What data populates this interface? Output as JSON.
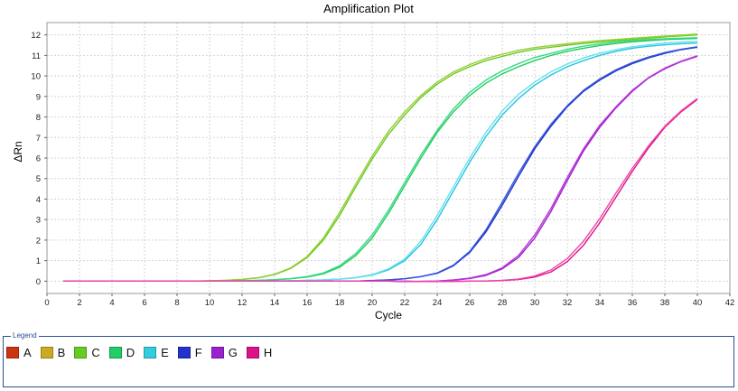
{
  "chart_data": {
    "type": "line",
    "title": "Amplification Plot",
    "xlabel": "Cycle",
    "ylabel": "ΔRn",
    "xlim": [
      0,
      42
    ],
    "ylim": [
      -0.6,
      12.6
    ],
    "xticks": [
      0,
      2,
      4,
      6,
      8,
      10,
      12,
      14,
      16,
      18,
      20,
      22,
      24,
      26,
      28,
      30,
      32,
      34,
      36,
      38,
      40,
      42
    ],
    "yticks": [
      0,
      1,
      2,
      3,
      4,
      5,
      6,
      7,
      8,
      9,
      10,
      11,
      12
    ],
    "grid": true,
    "x": [
      1,
      2,
      3,
      4,
      5,
      6,
      7,
      8,
      9,
      10,
      11,
      12,
      13,
      14,
      15,
      16,
      17,
      18,
      19,
      20,
      21,
      22,
      23,
      24,
      25,
      26,
      27,
      28,
      29,
      30,
      31,
      32,
      33,
      34,
      35,
      36,
      37,
      38,
      39,
      40
    ],
    "series": [
      {
        "color": "#66cc22",
        "values": [
          0,
          0,
          0,
          0,
          0,
          0,
          0,
          0,
          0,
          0.02,
          0.04,
          0.08,
          0.16,
          0.32,
          0.62,
          1.15,
          2.0,
          3.2,
          4.6,
          5.95,
          7.15,
          8.1,
          8.95,
          9.6,
          10.1,
          10.45,
          10.75,
          10.95,
          11.15,
          11.3,
          11.4,
          11.5,
          11.58,
          11.65,
          11.72,
          11.78,
          11.84,
          11.9,
          11.95,
          12.0
        ]
      },
      {
        "color": "#99cc33",
        "values": [
          0,
          0,
          0,
          0,
          0,
          0,
          0,
          0,
          0,
          0.02,
          0.04,
          0.09,
          0.17,
          0.34,
          0.65,
          1.2,
          2.1,
          3.35,
          4.75,
          6.1,
          7.3,
          8.25,
          9.05,
          9.7,
          10.2,
          10.55,
          10.85,
          11.05,
          11.25,
          11.38,
          11.48,
          11.57,
          11.65,
          11.72,
          11.78,
          11.84,
          11.89,
          11.94,
          11.99,
          12.04
        ]
      },
      {
        "color": "#22cc55",
        "values": [
          0,
          0,
          0,
          0,
          0,
          0,
          0,
          0,
          0,
          0,
          0,
          0.02,
          0.04,
          0.07,
          0.12,
          0.2,
          0.36,
          0.68,
          1.25,
          2.1,
          3.3,
          4.65,
          6.0,
          7.25,
          8.25,
          9.05,
          9.65,
          10.1,
          10.45,
          10.75,
          11.0,
          11.2,
          11.35,
          11.48,
          11.58,
          11.66,
          11.72,
          11.77,
          11.8,
          11.83
        ]
      },
      {
        "color": "#33d98a",
        "values": [
          0,
          0,
          0,
          0,
          0,
          0,
          0,
          0,
          0,
          0,
          0,
          0.02,
          0.04,
          0.07,
          0.13,
          0.22,
          0.4,
          0.75,
          1.35,
          2.25,
          3.45,
          4.8,
          6.15,
          7.35,
          8.4,
          9.2,
          9.8,
          10.25,
          10.6,
          10.9,
          11.1,
          11.3,
          11.45,
          11.56,
          11.65,
          11.72,
          11.77,
          11.81,
          11.84,
          11.86
        ]
      },
      {
        "color": "#22c4dd",
        "values": [
          0,
          0,
          0,
          0,
          0,
          0,
          0,
          0,
          0,
          0,
          0,
          0,
          0,
          0.01,
          0.02,
          0.04,
          0.06,
          0.1,
          0.17,
          0.3,
          0.55,
          1.0,
          1.8,
          3.0,
          4.4,
          5.8,
          7.05,
          8.1,
          8.9,
          9.55,
          10.05,
          10.45,
          10.75,
          11.0,
          11.2,
          11.35,
          11.45,
          11.52,
          11.57,
          11.6
        ]
      },
      {
        "color": "#66e0f0",
        "values": [
          0,
          0,
          0,
          0,
          0,
          0,
          0,
          0,
          0,
          0,
          0,
          0,
          0,
          0.01,
          0.02,
          0.04,
          0.06,
          0.1,
          0.18,
          0.32,
          0.6,
          1.08,
          1.95,
          3.2,
          4.6,
          6.0,
          7.25,
          8.3,
          9.1,
          9.7,
          10.2,
          10.58,
          10.88,
          11.1,
          11.28,
          11.42,
          11.52,
          11.6,
          11.65,
          11.68
        ]
      },
      {
        "color": "#1a2fcc",
        "values": [
          0,
          0,
          0,
          0,
          0,
          0,
          0,
          0,
          0,
          0,
          0,
          0,
          0,
          0,
          0,
          0,
          0,
          0,
          0,
          0.03,
          0.06,
          0.12,
          0.22,
          0.38,
          0.75,
          1.4,
          2.4,
          3.7,
          5.1,
          6.45,
          7.55,
          8.5,
          9.25,
          9.8,
          10.25,
          10.6,
          10.88,
          11.1,
          11.28,
          11.4
        ]
      },
      {
        "color": "#3355dd",
        "values": [
          0,
          0,
          0,
          0,
          0,
          0,
          0,
          0,
          0,
          0,
          0,
          0,
          0,
          0,
          0,
          0,
          0,
          0,
          0,
          0.03,
          0.06,
          0.12,
          0.22,
          0.4,
          0.78,
          1.45,
          2.5,
          3.85,
          5.25,
          6.55,
          7.65,
          8.55,
          9.3,
          9.85,
          10.3,
          10.65,
          10.92,
          11.14,
          11.3,
          11.42
        ]
      },
      {
        "color": "#9922cc",
        "values": [
          0,
          0,
          0,
          0,
          0,
          0,
          0,
          0,
          0,
          0,
          0,
          0,
          0,
          0,
          0,
          0,
          0,
          0,
          0,
          0,
          0,
          -0.02,
          -0.01,
          0,
          0.05,
          0.13,
          0.28,
          0.6,
          1.15,
          2.1,
          3.4,
          4.9,
          6.35,
          7.5,
          8.45,
          9.25,
          9.9,
          10.35,
          10.7,
          10.95
        ]
      },
      {
        "color": "#bb33dd",
        "values": [
          0,
          0,
          0,
          0,
          0,
          0,
          0,
          0,
          0,
          0,
          0,
          0,
          0,
          0,
          0,
          0,
          0,
          0,
          0,
          0,
          0,
          -0.02,
          -0.01,
          0,
          0.06,
          0.15,
          0.32,
          0.65,
          1.25,
          2.25,
          3.55,
          5.05,
          6.45,
          7.6,
          8.5,
          9.3,
          9.92,
          10.38,
          10.72,
          10.98
        ]
      },
      {
        "color": "#dd1188",
        "values": [
          0,
          0,
          0,
          0,
          0,
          0,
          0,
          0,
          0,
          0,
          0,
          0,
          0,
          0,
          0,
          0,
          0,
          0,
          0,
          0,
          0,
          0,
          -0.02,
          -0.02,
          -0.01,
          0,
          0.01,
          0.03,
          0.08,
          0.2,
          0.45,
          0.95,
          1.75,
          2.85,
          4.1,
          5.35,
          6.5,
          7.5,
          8.25,
          8.85
        ]
      },
      {
        "color": "#ee44aa",
        "values": [
          0,
          0,
          0,
          0,
          0,
          0,
          0,
          0,
          0,
          0,
          0,
          0,
          0,
          0,
          0,
          0,
          0,
          0,
          0,
          0,
          0,
          0,
          -0.02,
          -0.02,
          -0.01,
          0,
          0.01,
          0.04,
          0.1,
          0.25,
          0.55,
          1.1,
          1.95,
          3.05,
          4.3,
          5.5,
          6.6,
          7.55,
          8.3,
          8.9
        ]
      }
    ]
  },
  "legend": {
    "title": "Legend",
    "items": [
      {
        "label": "A",
        "color": "#cc3311"
      },
      {
        "label": "B",
        "color": "#ccaa22"
      },
      {
        "label": "C",
        "color": "#66cc22"
      },
      {
        "label": "D",
        "color": "#22cc66"
      },
      {
        "label": "E",
        "color": "#33ccdd"
      },
      {
        "label": "F",
        "color": "#2233cc"
      },
      {
        "label": "G",
        "color": "#9922cc"
      },
      {
        "label": "H",
        "color": "#dd1188"
      }
    ]
  }
}
